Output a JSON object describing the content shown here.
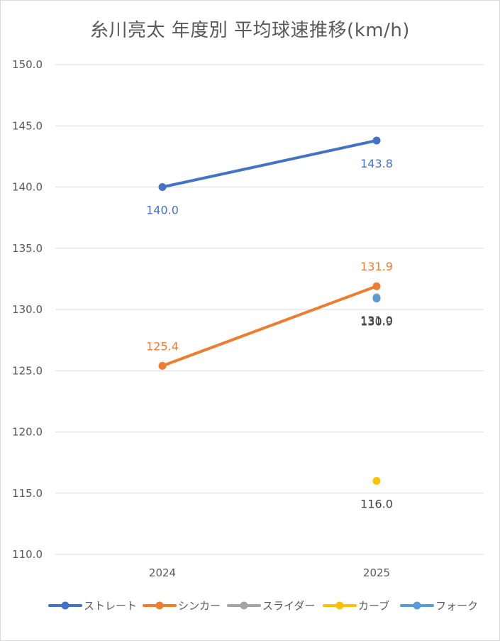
{
  "chart_data": {
    "type": "line",
    "title": "糸川亮太 年度別 平均球速推移(km/h)",
    "categories": [
      "2024",
      "2025"
    ],
    "ylim": [
      110.0,
      150.0
    ],
    "yticks": [
      "110.0",
      "115.0",
      "120.0",
      "125.0",
      "130.0",
      "135.0",
      "140.0",
      "145.0",
      "150.0"
    ],
    "grid": true,
    "legend_position": "bottom",
    "series": [
      {
        "name": "ストレート",
        "color": "#4472C4",
        "values": [
          140.0,
          143.8
        ],
        "labels": [
          "140.0",
          "143.8"
        ],
        "label_color": "#4472C4",
        "label_position": [
          "below",
          "below"
        ]
      },
      {
        "name": "シンカー",
        "color": "#ED7D31",
        "values": [
          125.4,
          131.9
        ],
        "labels": [
          "125.4",
          "131.9"
        ],
        "label_color": "#ED7D31",
        "label_position": [
          "above",
          "above"
        ]
      },
      {
        "name": "スライダー",
        "color": "#A5A5A5",
        "values": [
          null,
          131.0
        ],
        "labels": [
          null,
          "131.0"
        ],
        "label_color": "#404040",
        "label_position": [
          null,
          "below"
        ]
      },
      {
        "name": "カーブ",
        "color": "#FFC000",
        "values": [
          null,
          116.0
        ],
        "labels": [
          null,
          "116.0"
        ],
        "label_color": "#404040",
        "label_position": [
          null,
          "below"
        ]
      },
      {
        "name": "フォーク",
        "color": "#5B9BD5",
        "values": [
          null,
          130.9
        ],
        "labels": [
          null,
          "130.9"
        ],
        "label_color": "#404040",
        "label_position": [
          null,
          "below"
        ]
      }
    ]
  }
}
